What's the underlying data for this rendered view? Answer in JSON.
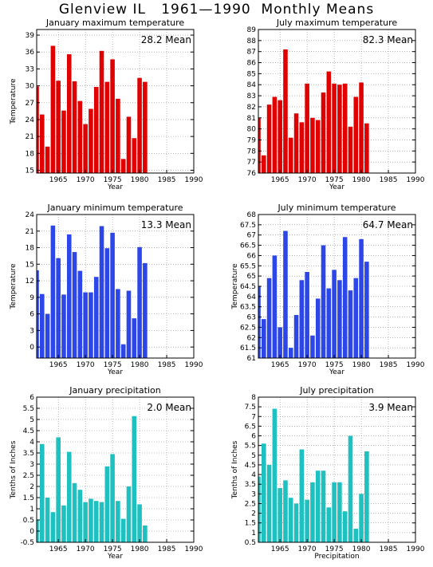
{
  "title": "Glenview IL   1961—1990  Monthly Means",
  "chart_data": [
    {
      "type": "bar",
      "title": "January maximum temperature",
      "mean_label": "28.2  Mean",
      "xlabel": "Year",
      "ylabel": "Temperature",
      "color": "#e00000",
      "x": [
        1961,
        1962,
        1963,
        1964,
        1965,
        1966,
        1967,
        1968,
        1969,
        1970,
        1971,
        1972,
        1973,
        1974,
        1975,
        1976,
        1977,
        1978,
        1979,
        1980,
        1981
      ],
      "values": [
        29.9,
        24.9,
        19.2,
        37.1,
        30.9,
        25.6,
        35.6,
        30.8,
        27.3,
        23.2,
        25.9,
        29.8,
        36.2,
        30.7,
        34.7,
        27.7,
        17.0,
        24.5,
        20.7,
        31.4,
        30.7
      ],
      "xlim": [
        1961,
        1990
      ],
      "ylim": [
        14.5,
        40
      ],
      "xticks": [
        1965,
        1970,
        1975,
        1980,
        1985,
        1990
      ],
      "yticks": [
        15,
        18,
        21,
        24,
        27,
        30,
        33,
        36,
        39
      ],
      "ytick_labels": [
        "15",
        "18",
        "21",
        "24",
        "27",
        "30",
        "33",
        "36",
        "39"
      ],
      "grid": true
    },
    {
      "type": "bar",
      "title": "July maximum temperature",
      "mean_label": "82.3  Mean",
      "xlabel": "Year",
      "ylabel": "",
      "color": "#e00000",
      "x": [
        1961,
        1962,
        1963,
        1964,
        1965,
        1966,
        1967,
        1968,
        1969,
        1970,
        1971,
        1972,
        1973,
        1974,
        1975,
        1976,
        1977,
        1978,
        1979,
        1980,
        1981
      ],
      "values": [
        81.0,
        77.6,
        82.2,
        82.9,
        82.6,
        87.2,
        79.2,
        81.4,
        80.6,
        84.1,
        81.0,
        80.8,
        83.3,
        85.2,
        84.1,
        84.0,
        84.1,
        80.2,
        82.9,
        84.2,
        80.5
      ],
      "xlim": [
        1961,
        1990
      ],
      "ylim": [
        76,
        89
      ],
      "xticks": [
        1965,
        1970,
        1975,
        1980,
        1985,
        1990
      ],
      "yticks": [
        76,
        77,
        78,
        79,
        80,
        81,
        82,
        83,
        84,
        85,
        86,
        87,
        88,
        89
      ],
      "ytick_labels": [
        "76",
        "77",
        "78",
        "79",
        "80",
        "81",
        "82",
        "83",
        "84",
        "85",
        "86",
        "87",
        "88",
        "89"
      ],
      "grid": true
    },
    {
      "type": "bar",
      "title": "January minimum temperature",
      "mean_label": "13.3  Mean",
      "xlabel": "Year",
      "ylabel": "Temperature",
      "color": "#2c46e8",
      "x": [
        1961,
        1962,
        1963,
        1964,
        1965,
        1966,
        1967,
        1968,
        1969,
        1970,
        1971,
        1972,
        1973,
        1974,
        1975,
        1976,
        1977,
        1978,
        1979,
        1980,
        1981
      ],
      "values": [
        13.9,
        9.6,
        6.0,
        22.0,
        16.1,
        9.5,
        20.4,
        17.2,
        13.8,
        9.9,
        9.9,
        12.7,
        21.9,
        17.9,
        20.7,
        10.5,
        0.5,
        10.2,
        5.2,
        18.1,
        15.2
      ],
      "xlim": [
        1961,
        1990
      ],
      "ylim": [
        -2,
        24
      ],
      "xticks": [
        1965,
        1970,
        1975,
        1980,
        1985,
        1990
      ],
      "yticks": [
        0,
        3,
        6,
        9,
        12,
        15,
        18,
        21,
        24
      ],
      "ytick_labels": [
        "0",
        "3",
        "6",
        "9",
        "12",
        "15",
        "18",
        "21",
        "24"
      ],
      "grid": true
    },
    {
      "type": "bar",
      "title": "July minimum temperature",
      "mean_label": "64.7  Mean",
      "xlabel": "Year",
      "ylabel": "Temperature",
      "color": "#2c46e8",
      "x": [
        1961,
        1962,
        1963,
        1964,
        1965,
        1966,
        1967,
        1968,
        1969,
        1970,
        1971,
        1972,
        1973,
        1974,
        1975,
        1976,
        1977,
        1978,
        1979,
        1980,
        1981
      ],
      "values": [
        64.5,
        62.9,
        64.9,
        66.0,
        62.5,
        67.2,
        61.5,
        63.1,
        64.8,
        65.2,
        62.1,
        63.9,
        66.5,
        64.4,
        65.3,
        64.8,
        66.9,
        64.3,
        64.9,
        66.8,
        65.7
      ],
      "xlim": [
        1961,
        1990
      ],
      "ylim": [
        61,
        68
      ],
      "xticks": [
        1965,
        1970,
        1975,
        1980,
        1985,
        1990
      ],
      "yticks": [
        61,
        61.5,
        62,
        62.5,
        63,
        63.5,
        64,
        64.5,
        65,
        65.5,
        66,
        66.5,
        67,
        67.5,
        68
      ],
      "ytick_labels": [
        "61",
        "61.5",
        "62",
        "62.5",
        "63",
        "63.5",
        "64",
        "64.5",
        "65",
        "65.5",
        "66",
        "66.5",
        "67",
        "67.5",
        "68"
      ],
      "grid": true
    },
    {
      "type": "bar",
      "title": "January precipitation",
      "mean_label": "2.0  Mean",
      "xlabel": "Year",
      "ylabel": "Tenths of Inches",
      "color": "#1ec0c0",
      "x": [
        1961,
        1962,
        1963,
        1964,
        1965,
        1966,
        1967,
        1968,
        1969,
        1970,
        1971,
        1972,
        1973,
        1974,
        1975,
        1976,
        1977,
        1978,
        1979,
        1980,
        1981
      ],
      "values": [
        0.5,
        3.9,
        1.5,
        0.85,
        4.2,
        1.15,
        3.55,
        2.15,
        1.85,
        1.3,
        1.45,
        1.35,
        1.3,
        2.9,
        3.45,
        1.35,
        0.55,
        2.0,
        5.15,
        1.2,
        0.25
      ],
      "xlim": [
        1961,
        1990
      ],
      "ylim": [
        -0.5,
        6
      ],
      "xticks": [
        1965,
        1970,
        1975,
        1980,
        1985,
        1990
      ],
      "yticks": [
        -0.5,
        0,
        0.5,
        1,
        1.5,
        2,
        2.5,
        3,
        3.5,
        4,
        4.5,
        5,
        5.5,
        6
      ],
      "ytick_labels": [
        "-0.5",
        "0",
        "0.5",
        "1",
        "1.5",
        "2",
        "2.5",
        "3",
        "3.5",
        "4",
        "4.5",
        "5",
        "5.5",
        "6"
      ],
      "grid": true
    },
    {
      "type": "bar",
      "title": "July precipitation",
      "mean_label": "3.9  Mean",
      "xlabel": "Precipitation",
      "ylabel": "Tenths of Inches",
      "color": "#1ec0c0",
      "x": [
        1961,
        1962,
        1963,
        1964,
        1965,
        1966,
        1967,
        1968,
        1969,
        1970,
        1971,
        1972,
        1973,
        1974,
        1975,
        1976,
        1977,
        1978,
        1979,
        1980,
        1981
      ],
      "values": [
        3.9,
        5.6,
        4.5,
        7.4,
        3.3,
        3.7,
        2.8,
        2.5,
        5.3,
        2.7,
        3.6,
        4.2,
        4.2,
        2.3,
        3.6,
        3.6,
        2.1,
        6.0,
        1.2,
        3.0,
        5.2
      ],
      "xlim": [
        1961,
        1990
      ],
      "ylim": [
        0.5,
        8
      ],
      "xticks": [
        1965,
        1970,
        1975,
        1980,
        1985,
        1990
      ],
      "yticks": [
        0.5,
        1,
        1.5,
        2,
        2.5,
        3,
        3.5,
        4,
        4.5,
        5,
        5.5,
        6,
        6.5,
        7,
        7.5,
        8
      ],
      "ytick_labels": [
        "0.5",
        "1",
        "1.5",
        "2",
        "2.5",
        "3",
        "3.5",
        "4",
        "4.5",
        "5",
        "5.5",
        "6",
        "6.5",
        "7",
        "7.5",
        "8"
      ],
      "grid": true
    }
  ]
}
